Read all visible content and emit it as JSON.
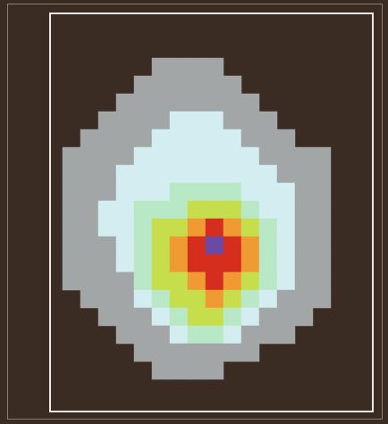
{
  "chart_data": {
    "type": "heatmap",
    "tick_labels": false,
    "colors": [
      "#a2a6a7",
      "#d3edf0",
      "#b9e8c6",
      "#c6de4c",
      "#ef9a32",
      "#d52e1f",
      "#6b4aa6"
    ],
    "cells": [
      [
        null,
        null,
        null,
        null,
        null,
        0,
        0,
        0,
        0,
        null,
        null,
        null,
        null,
        null,
        null,
        null
      ],
      [
        null,
        null,
        null,
        null,
        0,
        0,
        0,
        0,
        0,
        0,
        null,
        null,
        null,
        null,
        null,
        null
      ],
      [
        null,
        null,
        null,
        0,
        0,
        0,
        0,
        0,
        0,
        0,
        0,
        null,
        null,
        null,
        null,
        null
      ],
      [
        null,
        null,
        0,
        0,
        0,
        0,
        1,
        1,
        1,
        0,
        0,
        0,
        null,
        null,
        null,
        null
      ],
      [
        null,
        0,
        0,
        0,
        0,
        1,
        1,
        1,
        1,
        1,
        0,
        0,
        0,
        null,
        null,
        null
      ],
      [
        0,
        0,
        0,
        0,
        1,
        1,
        1,
        1,
        1,
        1,
        1,
        0,
        0,
        0,
        0,
        null
      ],
      [
        0,
        0,
        0,
        1,
        1,
        1,
        1,
        1,
        1,
        1,
        1,
        1,
        0,
        0,
        0,
        null
      ],
      [
        0,
        0,
        0,
        1,
        1,
        1,
        2,
        2,
        2,
        2,
        1,
        1,
        1,
        0,
        0,
        null
      ],
      [
        0,
        0,
        1,
        1,
        2,
        2,
        2,
        3,
        3,
        3,
        2,
        1,
        1,
        0,
        0,
        null
      ],
      [
        0,
        0,
        1,
        1,
        2,
        3,
        3,
        4,
        5,
        4,
        3,
        2,
        1,
        0,
        0,
        null
      ],
      [
        0,
        0,
        0,
        1,
        2,
        3,
        4,
        5,
        6,
        5,
        4,
        2,
        1,
        0,
        0,
        null
      ],
      [
        0,
        0,
        0,
        1,
        2,
        3,
        4,
        5,
        5,
        5,
        4,
        2,
        1,
        0,
        0,
        null
      ],
      [
        0,
        0,
        0,
        0,
        2,
        3,
        3,
        4,
        5,
        4,
        3,
        2,
        1,
        0,
        0,
        null
      ],
      [
        null,
        0,
        0,
        0,
        1,
        2,
        3,
        3,
        4,
        3,
        2,
        1,
        0,
        0,
        0,
        null
      ],
      [
        null,
        null,
        0,
        0,
        0,
        1,
        2,
        3,
        3,
        2,
        1,
        0,
        0,
        0,
        null,
        null
      ],
      [
        null,
        null,
        null,
        0,
        0,
        0,
        1,
        2,
        2,
        1,
        0,
        0,
        0,
        null,
        null,
        null
      ],
      [
        null,
        null,
        null,
        null,
        0,
        0,
        0,
        0,
        0,
        0,
        0,
        null,
        null,
        null,
        null,
        null
      ],
      [
        null,
        null,
        null,
        null,
        null,
        0,
        0,
        0,
        0,
        null,
        null,
        null,
        null,
        null,
        null,
        null
      ]
    ]
  }
}
